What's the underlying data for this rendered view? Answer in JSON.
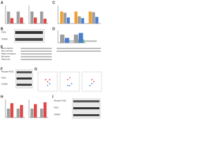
{
  "panels": [
    "A",
    "B",
    "C",
    "D",
    "E",
    "F",
    "G",
    "H",
    "I"
  ],
  "bar_charts": [
    {
      "ylim": [
        0,
        1.5
      ],
      "series": [
        {
          "color": "#9e9e9e",
          "values": [
            1,
            1
          ]
        },
        {
          "color": "#e04848",
          "values": [
            0.45,
            0.5
          ]
        }
      ]
    },
    {
      "ylim": [
        0,
        1.5
      ],
      "series": [
        {
          "color": "#9e9e9e",
          "values": [
            1,
            1
          ]
        },
        {
          "color": "#e04848",
          "values": [
            0.5,
            0.4
          ]
        }
      ]
    },
    {
      "ylim": [
        0,
        1.5
      ],
      "series": [
        {
          "color": "#f0a030",
          "values": [
            1,
            1,
            1
          ]
        },
        {
          "color": "#9e9e9e",
          "values": [
            0.9,
            0.6,
            0.95
          ]
        },
        {
          "color": "#4a7fd0",
          "values": [
            0.5,
            0.45,
            0.55
          ]
        }
      ]
    },
    {
      "ylim": [
        0,
        1.5
      ],
      "series": [
        {
          "color": "#9e9e9e",
          "values": [
            1,
            1
          ]
        },
        {
          "color": "#4a7fd0",
          "values": [
            0.6,
            1.2
          ]
        }
      ]
    },
    {
      "ylim": [
        0,
        2
      ],
      "series": [
        {
          "color": "#9e9e9e",
          "values": [
            1,
            1
          ]
        },
        {
          "color": "#e04848",
          "values": [
            1.6,
            1.4
          ]
        }
      ]
    },
    {
      "ylim": [
        0,
        2
      ],
      "series": [
        {
          "color": "#9e9e9e",
          "values": [
            1,
            1
          ]
        },
        {
          "color": "#e04848",
          "values": [
            1.5,
            1.7
          ]
        }
      ]
    }
  ],
  "scatter_charts": [
    {
      "xlim": [
        0,
        10
      ],
      "ylim": [
        0,
        10
      ],
      "series": [
        {
          "color": "#e04848",
          "x": [
            4,
            5,
            6
          ],
          "y": [
            6,
            5,
            6
          ]
        },
        {
          "color": "#4a7fd0",
          "x": [
            5,
            6
          ],
          "y": [
            3,
            4
          ]
        }
      ]
    },
    {
      "xlim": [
        0,
        10
      ],
      "ylim": [
        0,
        10
      ],
      "series": [
        {
          "color": "#e04848",
          "x": [
            4,
            5
          ],
          "y": [
            6,
            7
          ]
        },
        {
          "color": "#4a7fd0",
          "x": [
            5,
            6,
            4
          ],
          "y": [
            3,
            4,
            3
          ]
        }
      ]
    },
    {
      "xlim": [
        0,
        10
      ],
      "ylim": [
        0,
        10
      ],
      "series": [
        {
          "color": "#e04848",
          "x": [
            5,
            6
          ],
          "y": [
            6,
            5
          ]
        },
        {
          "color": "#4a7fd0",
          "x": [
            4,
            5
          ],
          "y": [
            3,
            4
          ]
        }
      ]
    }
  ],
  "blots": {
    "B": [
      "PCK2",
      "GAPDH"
    ],
    "F": [
      "Phospho-PCK2",
      "PCK2",
      "GAPDH"
    ],
    "I": [
      "Phospho-PCK2",
      "PCK2",
      "GAPDH"
    ]
  },
  "alignment": [
    "Homo sapiens",
    "Mus musculus",
    "Rattus norvegicus",
    "Bos taurus",
    "Danio rerio"
  ]
}
